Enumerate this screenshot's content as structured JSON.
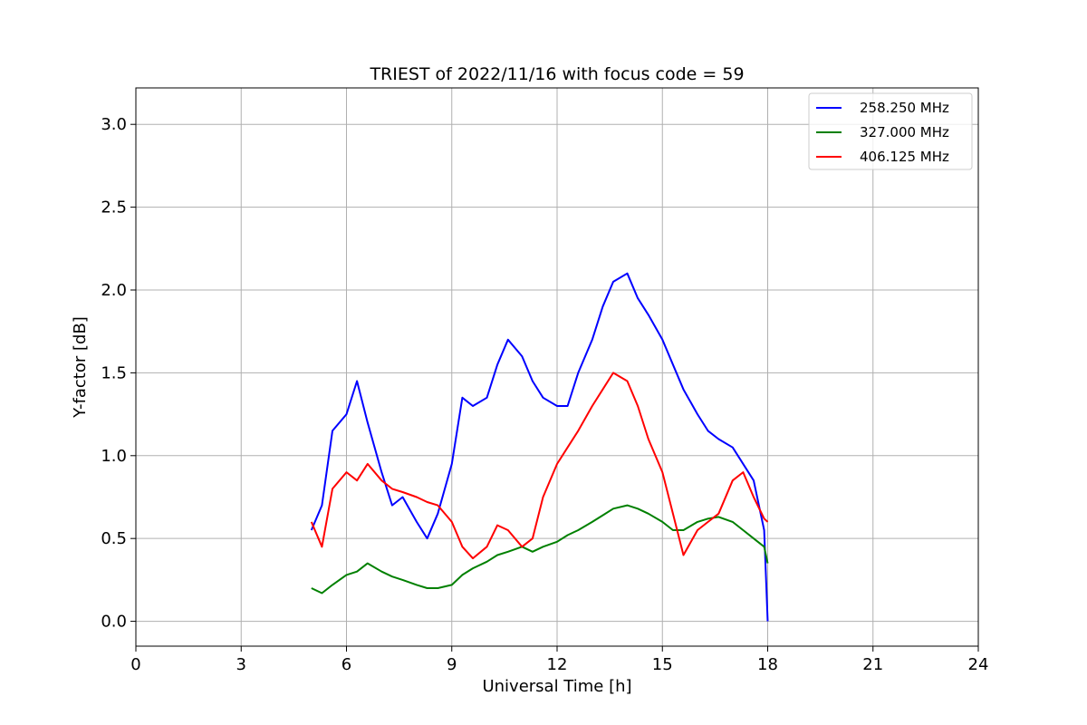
{
  "chart_data": {
    "type": "line",
    "title": "TRIEST of 2022/11/16 with focus code = 59",
    "xlabel": "Universal Time [h]",
    "ylabel": "Y-factor [dB]",
    "xlim": [
      0,
      24
    ],
    "ylim": [
      -0.15,
      3.22
    ],
    "xticks": [
      "0",
      "3",
      "6",
      "9",
      "12",
      "15",
      "18",
      "21",
      "24"
    ],
    "yticks": [
      "0.0",
      "0.5",
      "1.0",
      "1.5",
      "2.0",
      "2.5",
      "3.0"
    ],
    "grid": true,
    "legend_position": "top-right",
    "series": [
      {
        "name": "258.250 MHz",
        "color": "#0000ff",
        "x": [
          5.0,
          5.3,
          5.6,
          6.0,
          6.3,
          6.6,
          7.0,
          7.3,
          7.6,
          8.0,
          8.3,
          8.6,
          9.0,
          9.3,
          9.6,
          10.0,
          10.3,
          10.6,
          11.0,
          11.3,
          11.6,
          12.0,
          12.3,
          12.6,
          13.0,
          13.3,
          13.6,
          14.0,
          14.3,
          14.6,
          15.0,
          15.3,
          15.6,
          16.0,
          16.3,
          16.6,
          17.0,
          17.3,
          17.6,
          17.9,
          18.0
        ],
        "values": [
          0.55,
          0.7,
          1.15,
          1.25,
          1.45,
          1.2,
          0.9,
          0.7,
          0.75,
          0.6,
          0.5,
          0.65,
          0.95,
          1.35,
          1.3,
          1.35,
          1.55,
          1.7,
          1.6,
          1.45,
          1.35,
          1.3,
          1.3,
          1.5,
          1.7,
          1.9,
          2.05,
          2.1,
          1.95,
          1.85,
          1.7,
          1.55,
          1.4,
          1.25,
          1.15,
          1.1,
          1.05,
          0.95,
          0.85,
          0.55,
          0.0
        ]
      },
      {
        "name": "327.000 MHz",
        "color": "#008000",
        "x": [
          5.0,
          5.3,
          5.6,
          6.0,
          6.3,
          6.6,
          7.0,
          7.3,
          7.6,
          8.0,
          8.3,
          8.6,
          9.0,
          9.3,
          9.6,
          10.0,
          10.3,
          10.6,
          11.0,
          11.3,
          11.6,
          12.0,
          12.3,
          12.6,
          13.0,
          13.3,
          13.6,
          14.0,
          14.3,
          14.6,
          15.0,
          15.3,
          15.6,
          16.0,
          16.3,
          16.6,
          17.0,
          17.3,
          17.6,
          17.9,
          18.0
        ],
        "values": [
          0.2,
          0.17,
          0.22,
          0.28,
          0.3,
          0.35,
          0.3,
          0.27,
          0.25,
          0.22,
          0.2,
          0.2,
          0.22,
          0.28,
          0.32,
          0.36,
          0.4,
          0.42,
          0.45,
          0.42,
          0.45,
          0.48,
          0.52,
          0.55,
          0.6,
          0.64,
          0.68,
          0.7,
          0.68,
          0.65,
          0.6,
          0.55,
          0.55,
          0.6,
          0.62,
          0.63,
          0.6,
          0.55,
          0.5,
          0.45,
          0.35
        ]
      },
      {
        "name": "406.125 MHz",
        "color": "#ff0000",
        "x": [
          5.0,
          5.3,
          5.6,
          6.0,
          6.3,
          6.6,
          7.0,
          7.3,
          7.6,
          8.0,
          8.3,
          8.6,
          9.0,
          9.3,
          9.6,
          10.0,
          10.3,
          10.6,
          11.0,
          11.3,
          11.6,
          12.0,
          12.3,
          12.6,
          13.0,
          13.3,
          13.6,
          14.0,
          14.3,
          14.6,
          15.0,
          15.3,
          15.6,
          16.0,
          16.3,
          16.6,
          17.0,
          17.3,
          17.6,
          17.9,
          18.0
        ],
        "values": [
          0.6,
          0.45,
          0.8,
          0.9,
          0.85,
          0.95,
          0.85,
          0.8,
          0.78,
          0.75,
          0.72,
          0.7,
          0.6,
          0.45,
          0.38,
          0.45,
          0.58,
          0.55,
          0.45,
          0.5,
          0.75,
          0.95,
          1.05,
          1.15,
          1.3,
          1.4,
          1.5,
          1.45,
          1.3,
          1.1,
          0.9,
          0.65,
          0.4,
          0.55,
          0.6,
          0.65,
          0.85,
          0.9,
          0.75,
          0.62,
          0.6
        ]
      }
    ]
  }
}
